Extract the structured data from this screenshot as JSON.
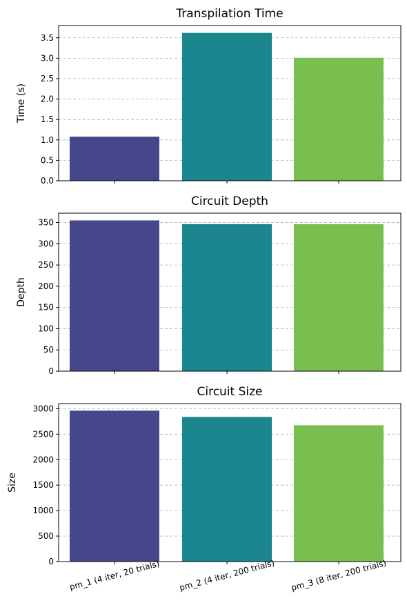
{
  "chart_data": [
    {
      "type": "bar",
      "title": "Transpilation Time",
      "xlabel": "",
      "ylabel": "Time (s)",
      "categories": [
        "pm_1 (4 iter, 20 trials)",
        "pm_2 (4 iter, 200 trials)",
        "pm_3 (8 iter, 200 trials)"
      ],
      "values": [
        1.08,
        3.62,
        3.01
      ],
      "ylim": [
        0,
        3.8
      ],
      "yticks": [
        0.0,
        0.5,
        1.0,
        1.5,
        2.0,
        2.5,
        3.0,
        3.5
      ],
      "ytick_labels": [
        "0.0",
        "0.5",
        "1.0",
        "1.5",
        "2.0",
        "2.5",
        "3.0",
        "3.5"
      ],
      "show_xtick_labels": false,
      "grid": "y-dashed"
    },
    {
      "type": "bar",
      "title": "Circuit Depth",
      "xlabel": "",
      "ylabel": "Depth",
      "categories": [
        "pm_1 (4 iter, 20 trials)",
        "pm_2 (4 iter, 200 trials)",
        "pm_3 (8 iter, 200 trials)"
      ],
      "values": [
        355,
        346,
        346
      ],
      "ylim": [
        0,
        372
      ],
      "yticks": [
        0,
        50,
        100,
        150,
        200,
        250,
        300,
        350
      ],
      "ytick_labels": [
        "0",
        "50",
        "100",
        "150",
        "200",
        "250",
        "300",
        "350"
      ],
      "show_xtick_labels": false,
      "grid": "y-dashed"
    },
    {
      "type": "bar",
      "title": "Circuit Size",
      "xlabel": "",
      "ylabel": "Size",
      "categories": [
        "pm_1 (4 iter, 20 trials)",
        "pm_2 (4 iter, 200 trials)",
        "pm_3 (8 iter, 200 trials)"
      ],
      "values": [
        2962,
        2838,
        2675
      ],
      "ylim": [
        0,
        3100
      ],
      "yticks": [
        0,
        500,
        1000,
        1500,
        2000,
        2500,
        3000
      ],
      "ytick_labels": [
        "0",
        "500",
        "1000",
        "1500",
        "2000",
        "2500",
        "3000"
      ],
      "show_xtick_labels": true,
      "grid": "y-dashed"
    }
  ],
  "colors": [
    "#46478b",
    "#1c868e",
    "#78bf4f"
  ]
}
